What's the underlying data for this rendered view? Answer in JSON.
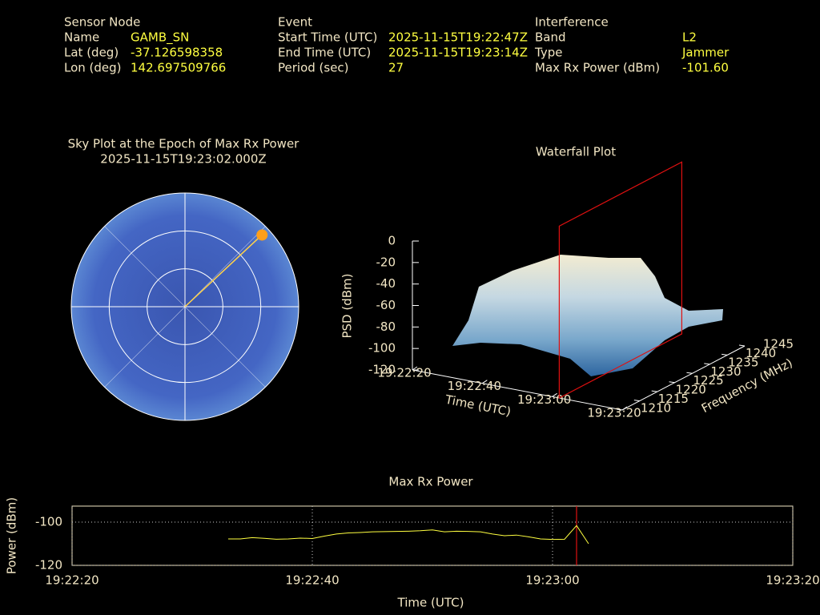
{
  "header": [
    {
      "title": "Sensor Node",
      "rows": [
        [
          "Name",
          "GAMB_SN"
        ],
        [
          "Lat (deg)",
          "-37.126598358"
        ],
        [
          "Lon (deg)",
          "142.697509766"
        ]
      ]
    },
    {
      "title": "Event",
      "rows": [
        [
          "Start Time (UTC)",
          "2025-11-15T19:22:47Z"
        ],
        [
          "End Time (UTC)",
          "2025-11-15T19:23:14Z"
        ],
        [
          "Period (sec)",
          "27"
        ]
      ]
    },
    {
      "title": "Interference",
      "rows": [
        [
          "Band",
          "L2"
        ],
        [
          "Type",
          "Jammer"
        ],
        [
          "Max Rx Power (dBm)",
          "-101.60"
        ]
      ]
    }
  ],
  "chart_data": [
    {
      "type": "polar",
      "title": "Sky Plot at the Epoch of Max Rx Power",
      "subtitle": "2025-11-15T19:23:02.000Z",
      "azimuth": 47,
      "elevation": 4,
      "rticks": [
        0,
        30,
        60
      ],
      "thetaticks": [
        0,
        45,
        90,
        135,
        180,
        225,
        270,
        315
      ],
      "color": "#ff9f1a",
      "fill": "#3f5fbf"
    },
    {
      "type": "surface",
      "title": "Waterfall Plot",
      "xlabel": "Time (UTC)",
      "ylabel": "Frequency (MHz)",
      "zlabel": "PSD (dBm)",
      "xlim": [
        "19:22:20",
        "19:23:20"
      ],
      "xticks": [
        "19:22:20",
        "19:22:40",
        "19:23:00",
        "19:23:20"
      ],
      "ylim": [
        1210,
        1245
      ],
      "yticks": [
        1210,
        1215,
        1220,
        1225,
        1230,
        1235,
        1240,
        1245
      ],
      "zlim": [
        -120,
        0
      ],
      "zticks": [
        0,
        -20,
        -40,
        -60,
        -80,
        -100,
        -120
      ],
      "marker_color": "#e01010"
    },
    {
      "type": "line",
      "title": "Max Rx Power",
      "xlabel": "Time (UTC)",
      "ylabel": "Power (dBm)",
      "x": [
        "19:22:33",
        "19:22:34",
        "19:22:35",
        "19:22:36",
        "19:22:37",
        "19:22:38",
        "19:22:39",
        "19:22:40",
        "19:22:41",
        "19:22:42",
        "19:22:43",
        "19:22:44",
        "19:22:45",
        "19:22:46",
        "19:22:47",
        "19:22:48",
        "19:22:49",
        "19:22:50",
        "19:22:51",
        "19:22:52",
        "19:22:53",
        "19:22:54",
        "19:22:55",
        "19:22:56",
        "19:22:57",
        "19:22:58",
        "19:22:59",
        "19:23:00",
        "19:23:01",
        "19:23:02",
        "19:23:03"
      ],
      "values": [
        -107.8,
        -107.8,
        -107.2,
        -107.5,
        -107.9,
        -107.8,
        -107.4,
        -107.6,
        -106.5,
        -105.5,
        -105.0,
        -104.8,
        -104.5,
        -104.4,
        -104.3,
        -104.2,
        -104.0,
        -103.6,
        -104.5,
        -104.2,
        -104.3,
        -104.5,
        -105.5,
        -106.3,
        -106.0,
        -106.8,
        -107.8,
        -108.0,
        -107.9,
        -101.6,
        -110.0
      ],
      "color": "#ffff40",
      "marker_color": "#e01010",
      "xlim": [
        "19:22:20",
        "19:23:20"
      ],
      "xticks": [
        "19:22:20",
        "19:22:40",
        "19:23:00",
        "19:23:20"
      ],
      "ylim": [
        -120,
        -92.6
      ],
      "yticks": [
        -100,
        -120
      ],
      "grid": true
    }
  ]
}
